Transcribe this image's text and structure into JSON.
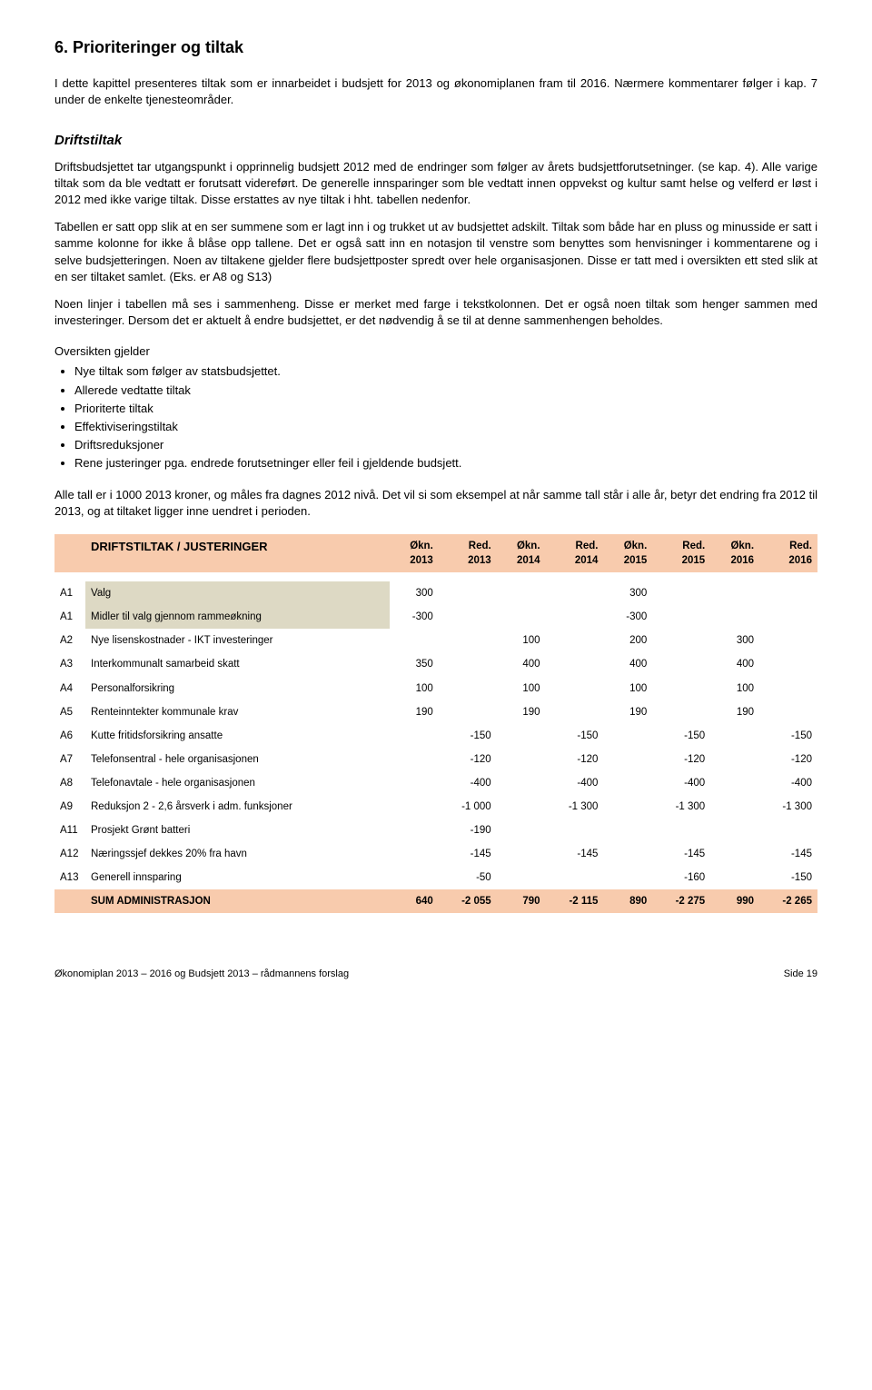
{
  "header": {
    "title": "6.   Prioriteringer og tiltak",
    "intro": "I dette kapittel presenteres tiltak som er innarbeidet i budsjett for 2013 og økonomiplanen fram til 2016. Nærmere kommentarer følger i kap. 7 under de enkelte tjenesteområder.",
    "subhead": "Driftstiltak"
  },
  "paragraphs": {
    "p1": "Driftsbudsjettet tar utgangspunkt i opprinnelig budsjett 2012 med de endringer som følger av årets budsjettforutsetninger.  (se kap. 4).  Alle varige tiltak som da ble vedtatt er forutsatt videreført.  De generelle innsparinger som ble vedtatt innen oppvekst og kultur samt helse og velferd er løst i 2012 med ikke varige tiltak.  Disse erstattes av nye tiltak i hht. tabellen nedenfor.",
    "p2": "Tabellen er satt opp slik at en ser summene som er lagt inn i og trukket ut av budsjettet adskilt.  Tiltak som både har en pluss og minusside er satt i samme kolonne for ikke å blåse opp tallene.  Det er også satt inn en notasjon til venstre som benyttes som henvisninger i kommentarene og i selve budsjetteringen.   Noen av tiltakene gjelder flere budsjettposter spredt over hele organisasjonen.  Disse er tatt med i oversikten ett sted slik at en ser tiltaket samlet.  (Eks. er A8 og S13)",
    "p3": "Noen linjer i tabellen må ses i sammenheng.  Disse er merket med farge i tekstkolonnen.   Det er også noen tiltak som henger sammen med investeringer.  Dersom det er aktuelt å endre budsjettet, er det nødvendig å se til at denne sammenhengen beholdes.",
    "p4_intro": "Oversikten gjelder",
    "bullets": [
      "Nye tiltak som følger av statsbudsjettet.",
      "Allerede vedtatte tiltak",
      "Prioriterte tiltak",
      "Effektiviseringstiltak",
      "Driftsreduksjoner",
      "Rene justeringer pga. endrede forutsetninger eller feil i gjeldende budsjett."
    ],
    "p5": "Alle tall er i 1000 2013 kroner, og måles fra dagnes 2012 nivå. Det vil si som eksempel at når samme tall står i alle år, betyr det endring fra 2012 til 2013, og at tiltaket ligger inne uendret i perioden."
  },
  "table": {
    "title": "DRIFTSTILTAK / JUSTERINGER",
    "header_bg": "#f8cbad",
    "shaded_bg": "#ddd9c4",
    "columns": [
      {
        "top": "Økn.",
        "bot": "2013"
      },
      {
        "top": "Red.",
        "bot": "2013"
      },
      {
        "top": "Økn.",
        "bot": "2014"
      },
      {
        "top": "Red.",
        "bot": "2014"
      },
      {
        "top": "Økn.",
        "bot": "2015"
      },
      {
        "top": "Red.",
        "bot": "2015"
      },
      {
        "top": "Økn.",
        "bot": "2016"
      },
      {
        "top": "Red.",
        "bot": "2016"
      }
    ],
    "rows": [
      {
        "code": "A1",
        "label": "Valg",
        "shaded": true,
        "vals": [
          "300",
          "",
          "",
          "",
          "300",
          "",
          "",
          ""
        ]
      },
      {
        "code": "A1",
        "label": "Midler til valg gjennom rammeøkning",
        "shaded": true,
        "vals": [
          "-300",
          "",
          "",
          "",
          "-300",
          "",
          "",
          ""
        ]
      },
      {
        "code": "A2",
        "label": "Nye lisenskostnader - IKT investeringer",
        "vals": [
          "",
          "",
          "100",
          "",
          "200",
          "",
          "300",
          ""
        ]
      },
      {
        "code": "A3",
        "label": "Interkommunalt samarbeid skatt",
        "vals": [
          "350",
          "",
          "400",
          "",
          "400",
          "",
          "400",
          ""
        ]
      },
      {
        "code": "A4",
        "label": "Personalforsikring",
        "vals": [
          "100",
          "",
          "100",
          "",
          "100",
          "",
          "100",
          ""
        ]
      },
      {
        "code": "A5",
        "label": "Renteinntekter kommunale krav",
        "vals": [
          "190",
          "",
          "190",
          "",
          "190",
          "",
          "190",
          ""
        ]
      },
      {
        "code": "A6",
        "label": "Kutte fritidsforsikring ansatte",
        "vals": [
          "",
          "-150",
          "",
          "-150",
          "",
          "-150",
          "",
          "-150"
        ]
      },
      {
        "code": "A7",
        "label": "Telefonsentral - hele organisasjonen",
        "vals": [
          "",
          "-120",
          "",
          "-120",
          "",
          "-120",
          "",
          "-120"
        ]
      },
      {
        "code": "A8",
        "label": "Telefonavtale - hele organisasjonen",
        "vals": [
          "",
          "-400",
          "",
          "-400",
          "",
          "-400",
          "",
          "-400"
        ]
      },
      {
        "code": "A9",
        "label": "Reduksjon 2 - 2,6 årsverk i adm. funksjoner",
        "vals": [
          "",
          "-1 000",
          "",
          "-1 300",
          "",
          "-1 300",
          "",
          "-1 300"
        ]
      },
      {
        "code": "A11",
        "label": "Prosjekt Grønt batteri",
        "vals": [
          "",
          "-190",
          "",
          "",
          "",
          "",
          "",
          ""
        ]
      },
      {
        "code": "A12",
        "label": "Næringssjef dekkes 20% fra havn",
        "vals": [
          "",
          "-145",
          "",
          "-145",
          "",
          "-145",
          "",
          "-145"
        ]
      },
      {
        "code": "A13",
        "label": "Generell innsparing",
        "vals": [
          "",
          "-50",
          "",
          "",
          "",
          "-160",
          "",
          "-150"
        ]
      }
    ],
    "sum": {
      "label": "SUM ADMINISTRASJON",
      "vals": [
        "640",
        "-2 055",
        "790",
        "-2 115",
        "890",
        "-2 275",
        "990",
        "-2 265"
      ]
    }
  },
  "footer": {
    "left": "Økonomiplan 2013 – 2016 og Budsjett 2013 – rådmannens forslag",
    "right": "Side 19"
  }
}
